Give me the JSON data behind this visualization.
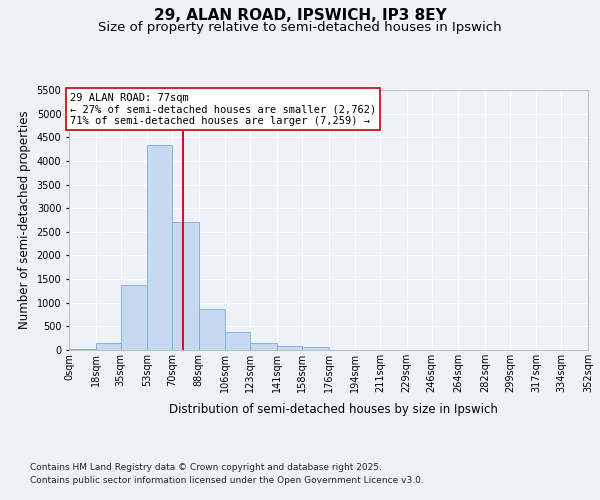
{
  "title_line1": "29, ALAN ROAD, IPSWICH, IP3 8EY",
  "title_line2": "Size of property relative to semi-detached houses in Ipswich",
  "xlabel": "Distribution of semi-detached houses by size in Ipswich",
  "ylabel": "Number of semi-detached properties",
  "property_size": 77,
  "annotation_title": "29 ALAN ROAD: 77sqm",
  "annotation_smaller": "← 27% of semi-detached houses are smaller (2,762)",
  "annotation_larger": "71% of semi-detached houses are larger (7,259) →",
  "footnote1": "Contains HM Land Registry data © Crown copyright and database right 2025.",
  "footnote2": "Contains public sector information licensed under the Open Government Licence v3.0.",
  "bin_edges": [
    0,
    18,
    35,
    53,
    70,
    88,
    106,
    123,
    141,
    158,
    176,
    194,
    211,
    229,
    246,
    264,
    282,
    299,
    317,
    334,
    352
  ],
  "bin_labels": [
    "0sqm",
    "18sqm",
    "35sqm",
    "53sqm",
    "70sqm",
    "88sqm",
    "106sqm",
    "123sqm",
    "141sqm",
    "158sqm",
    "176sqm",
    "194sqm",
    "211sqm",
    "229sqm",
    "246sqm",
    "264sqm",
    "282sqm",
    "299sqm",
    "317sqm",
    "334sqm",
    "352sqm"
  ],
  "bar_counts": [
    30,
    150,
    1380,
    4330,
    2700,
    860,
    390,
    145,
    90,
    55,
    0,
    0,
    0,
    0,
    0,
    0,
    0,
    0,
    0,
    0
  ],
  "bar_color": "#c5d9f0",
  "bar_edge_color": "#7aabda",
  "vline_color": "#cc0000",
  "vline_x": 77,
  "annotation_box_color": "#cc0000",
  "ylim": [
    0,
    5500
  ],
  "yticks": [
    0,
    500,
    1000,
    1500,
    2000,
    2500,
    3000,
    3500,
    4000,
    4500,
    5000,
    5500
  ],
  "bg_color": "#eef2f8",
  "plot_bg_color": "#eef2f8",
  "grid_color": "#ffffff",
  "title_fontsize": 11,
  "subtitle_fontsize": 9.5,
  "axis_label_fontsize": 8.5,
  "tick_fontsize": 7,
  "annotation_fontsize": 7.5,
  "footnote_fontsize": 6.5
}
